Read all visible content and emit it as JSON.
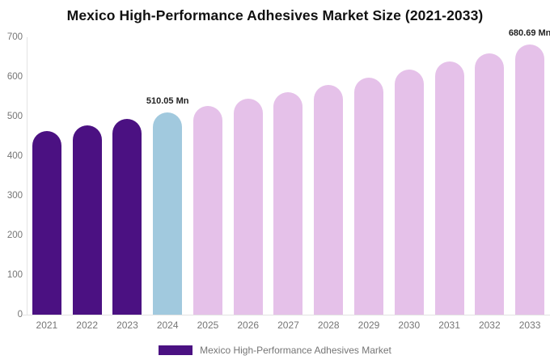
{
  "title": "Mexico High-Performance Adhesives Market Size (2021-2033)",
  "legend": {
    "label": "Mexico High-Performance Adhesives Market"
  },
  "colors": {
    "historical": "#4B1182",
    "base_year": "#A1C9DE",
    "forecast": "#E5C1E9",
    "legend_swatch": "#4B1182",
    "axis_line": "#E3E3E3",
    "tick_text": "#757575",
    "annotation_text": "#222222"
  },
  "chart_data": {
    "type": "bar",
    "title": "Mexico High-Performance Adhesives Market Size (2021-2033)",
    "categories": [
      "2021",
      "2022",
      "2023",
      "2024",
      "2025",
      "2026",
      "2027",
      "2028",
      "2029",
      "2030",
      "2031",
      "2032",
      "2033"
    ],
    "values": [
      463,
      478,
      494,
      510.05,
      527,
      544,
      562,
      580,
      599,
      618,
      638,
      659,
      680.69
    ],
    "bar_roles": [
      "historical",
      "historical",
      "historical",
      "base_year",
      "forecast",
      "forecast",
      "forecast",
      "forecast",
      "forecast",
      "forecast",
      "forecast",
      "forecast",
      "forecast"
    ],
    "annotations": [
      {
        "category": "2024",
        "text": "510.05 Mn"
      },
      {
        "category": "2033",
        "text": "680.69 Mn"
      }
    ],
    "unit": "Mn",
    "xlabel": "",
    "ylabel": "",
    "ylim": [
      0,
      700
    ],
    "yticks": [
      0,
      100,
      200,
      300,
      400,
      500,
      600,
      700
    ],
    "grid": false,
    "legend_position": "bottom",
    "legend_entries": [
      "Mexico High-Performance Adhesives Market"
    ]
  }
}
